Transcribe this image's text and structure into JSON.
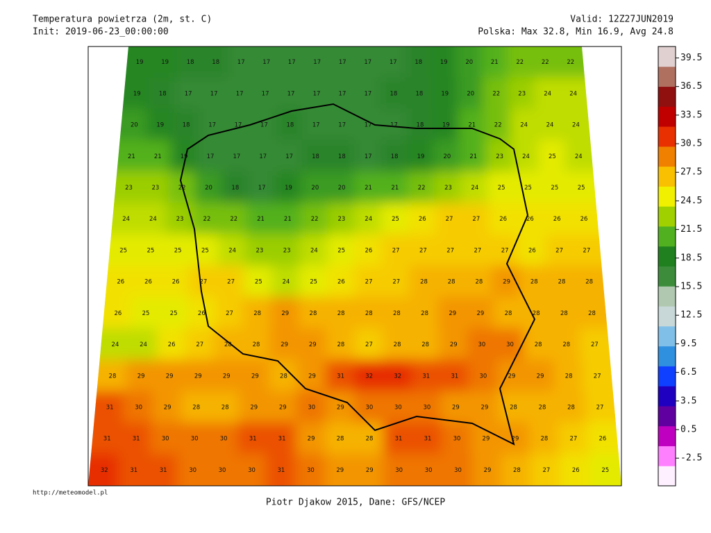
{
  "header": {
    "title": "Temperatura powietrza (2m, st. C)",
    "init": "Init: 2019-06-23_00:00:00",
    "valid": "Valid: 12Z27JUN2019",
    "stats": "Polska: Max 32.8, Min 16.9, Avg 24.8"
  },
  "map": {
    "grid": [
      [
        19,
        19,
        18,
        18,
        17,
        17,
        17,
        17,
        17,
        17,
        17,
        18,
        19,
        20,
        21,
        22,
        22,
        22
      ],
      [
        19,
        18,
        17,
        17,
        17,
        17,
        17,
        17,
        17,
        17,
        18,
        18,
        19,
        20,
        22,
        23,
        24,
        24
      ],
      [
        20,
        19,
        18,
        17,
        17,
        17,
        18,
        17,
        17,
        17,
        17,
        18,
        19,
        21,
        22,
        24,
        24,
        24
      ],
      [
        21,
        21,
        19,
        17,
        17,
        17,
        17,
        18,
        18,
        17,
        18,
        19,
        20,
        21,
        23,
        24,
        25,
        24
      ],
      [
        23,
        23,
        22,
        20,
        18,
        17,
        19,
        20,
        20,
        21,
        21,
        22,
        23,
        24,
        25,
        25,
        25,
        25
      ],
      [
        24,
        24,
        23,
        22,
        22,
        21,
        21,
        22,
        23,
        24,
        25,
        26,
        27,
        27,
        26,
        26,
        26,
        26
      ],
      [
        25,
        25,
        25,
        25,
        24,
        23,
        23,
        24,
        25,
        26,
        27,
        27,
        27,
        27,
        27,
        26,
        27,
        27
      ],
      [
        26,
        26,
        26,
        27,
        27,
        25,
        24,
        25,
        26,
        27,
        27,
        28,
        28,
        28,
        29,
        28,
        28,
        28
      ],
      [
        26,
        25,
        25,
        26,
        27,
        28,
        29,
        28,
        28,
        28,
        28,
        28,
        29,
        29,
        28,
        28,
        28,
        28
      ],
      [
        24,
        24,
        26,
        27,
        28,
        28,
        29,
        29,
        28,
        27,
        28,
        28,
        29,
        30,
        30,
        28,
        28,
        27
      ],
      [
        28,
        29,
        29,
        29,
        29,
        29,
        28,
        29,
        31,
        32,
        32,
        31,
        31,
        30,
        29,
        29,
        28,
        27
      ],
      [
        31,
        30,
        29,
        28,
        28,
        29,
        29,
        30,
        29,
        30,
        30,
        30,
        29,
        29,
        28,
        28,
        28,
        27
      ],
      [
        31,
        31,
        30,
        30,
        30,
        31,
        31,
        29,
        28,
        28,
        31,
        31,
        30,
        29,
        29,
        28,
        27,
        26
      ],
      [
        32,
        31,
        31,
        30,
        30,
        30,
        31,
        30,
        29,
        29,
        30,
        30,
        30,
        29,
        28,
        27,
        26,
        25
      ]
    ]
  },
  "colorbar": {
    "range": [
      -5.4,
      40.7
    ],
    "ticks": [
      39.5,
      36.5,
      33.5,
      30.5,
      27.5,
      24.5,
      21.5,
      18.5,
      15.5,
      12.5,
      9.5,
      6.5,
      3.5,
      0.5,
      -2.5
    ],
    "colors": [
      "#fff0ff",
      "#ff80ff",
      "#c000c0",
      "#6000a0",
      "#2000c0",
      "#1040ff",
      "#3090e0",
      "#80c0e8",
      "#c8d8d8",
      "#b0c8b0",
      "#3c8c3c",
      "#208020",
      "#50b020",
      "#a0d000",
      "#f0f000",
      "#f8c000",
      "#f08000",
      "#e83000",
      "#c00000",
      "#901010",
      "#b07060",
      "#e0d0d0"
    ]
  },
  "footer": {
    "credit": "Piotr Djakow 2015, Dane: GFS/NCEP",
    "url": "http://meteomodel.pl"
  }
}
